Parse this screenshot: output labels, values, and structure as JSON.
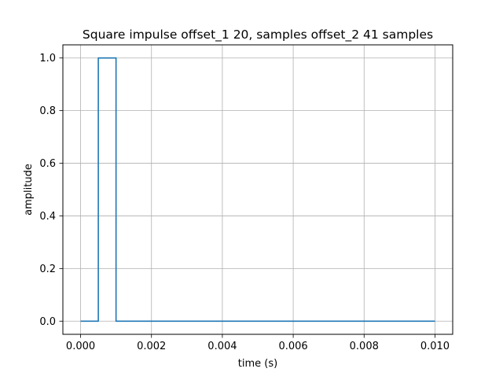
{
  "chart_data": {
    "type": "line",
    "title": "Square impulse offset_1 20, samples offset_2 41 samples",
    "xlabel": "time (s)",
    "ylabel": "amplitude",
    "xlim": [
      -0.0005,
      0.0105
    ],
    "ylim": [
      -0.05,
      1.05
    ],
    "xticks": [
      0.0,
      0.002,
      0.004,
      0.006,
      0.008,
      0.01
    ],
    "xtick_labels": [
      "0.000",
      "0.002",
      "0.004",
      "0.006",
      "0.008",
      "0.010"
    ],
    "yticks": [
      0.0,
      0.2,
      0.4,
      0.6,
      0.8,
      1.0
    ],
    "ytick_labels": [
      "0.0",
      "0.2",
      "0.4",
      "0.6",
      "0.8",
      "1.0"
    ],
    "grid": true,
    "series": [
      {
        "color": "#1f77b4",
        "x": [
          0.0,
          0.0005,
          0.0005,
          0.001,
          0.001,
          0.01
        ],
        "y": [
          0.0,
          0.0,
          1.0,
          1.0,
          0.0,
          0.0
        ]
      }
    ]
  }
}
